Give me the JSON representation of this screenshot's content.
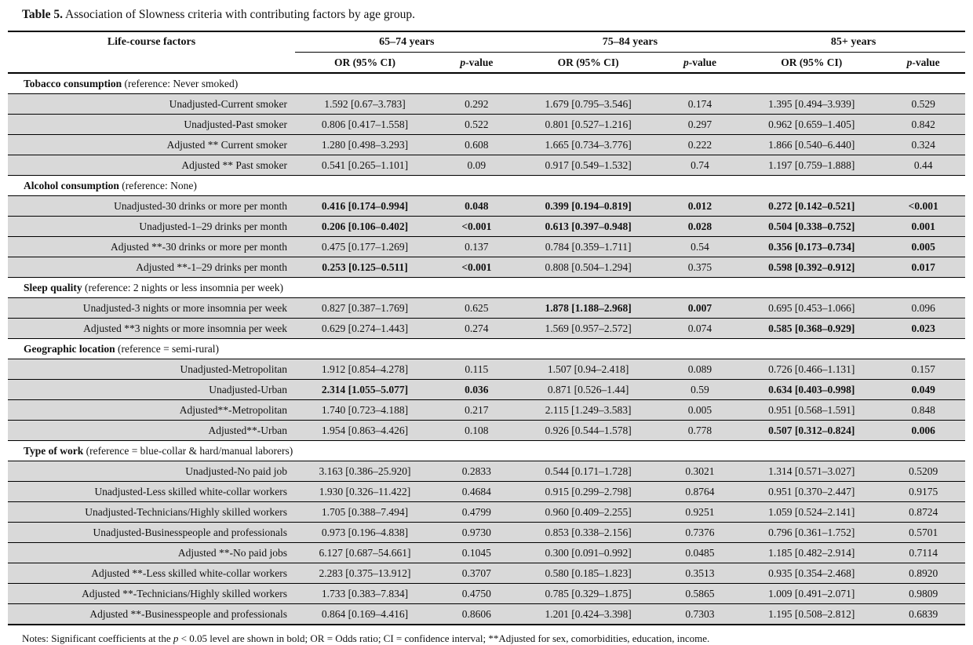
{
  "title": {
    "bold_part": "Table 5.",
    "rest_part": " Association of Slowness criteria with contributing factors by age group."
  },
  "colors": {
    "row_bg": "#d9d9d9",
    "rule": "#000000",
    "text": "#111111"
  },
  "header": {
    "factor_col": "Life-course factors",
    "groups": [
      {
        "label": "65–74 years"
      },
      {
        "label": "75–84 years"
      },
      {
        "label": "85+ years"
      }
    ],
    "or_label": "OR (95% CI)",
    "p_italic": "p",
    "p_rest": "-value"
  },
  "sections": [
    {
      "title": "Tobacco consumption",
      "reference": "(reference: Never smoked)",
      "rows": [
        {
          "label": "Unadjusted-Current smoker",
          "values": [
            "1.592 [0.67–3.783]",
            "0.292",
            "1.679 [0.795–3.546]",
            "0.174",
            "1.395 [0.494–3.939]",
            "0.529"
          ],
          "bold": [
            false,
            false,
            false,
            false,
            false,
            false
          ]
        },
        {
          "label": "Unadjusted-Past smoker",
          "values": [
            "0.806 [0.417–1.558]",
            "0.522",
            "0.801 [0.527–1.216]",
            "0.297",
            "0.962 [0.659–1.405]",
            "0.842"
          ],
          "bold": [
            false,
            false,
            false,
            false,
            false,
            false
          ]
        },
        {
          "label": "Adjusted ** Current smoker",
          "values": [
            "1.280 [0.498–3.293]",
            "0.608",
            "1.665 [0.734–3.776]",
            "0.222",
            "1.866 [0.540–6.440]",
            "0.324"
          ],
          "bold": [
            false,
            false,
            false,
            false,
            false,
            false
          ]
        },
        {
          "label": "Adjusted ** Past smoker",
          "values": [
            "0.541 [0.265–1.101]",
            "0.09",
            "0.917 [0.549–1.532]",
            "0.74",
            "1.197 [0.759–1.888]",
            "0.44"
          ],
          "bold": [
            false,
            false,
            false,
            false,
            false,
            false
          ]
        }
      ]
    },
    {
      "title": "Alcohol consumption",
      "reference": "(reference: None)",
      "rows": [
        {
          "label": "Unadjusted-30 drinks or more per month",
          "values": [
            "0.416 [0.174–0.994]",
            "0.048",
            "0.399 [0.194–0.819]",
            "0.012",
            "0.272 [0.142–0.521]",
            "<0.001"
          ],
          "bold": [
            true,
            true,
            true,
            true,
            true,
            true
          ]
        },
        {
          "label": "Unadjusted-1–29 drinks per month",
          "values": [
            "0.206 [0.106–0.402]",
            "<0.001",
            "0.613 [0.397–0.948]",
            "0.028",
            "0.504 [0.338–0.752]",
            "0.001"
          ],
          "bold": [
            true,
            true,
            true,
            true,
            true,
            true
          ]
        },
        {
          "label": "Adjusted **-30 drinks or more per month",
          "values": [
            "0.475 [0.177–1.269]",
            "0.137",
            "0.784 [0.359–1.711]",
            "0.54",
            "0.356 [0.173–0.734]",
            "0.005"
          ],
          "bold": [
            false,
            false,
            false,
            false,
            true,
            true
          ]
        },
        {
          "label": "Adjusted **-1–29 drinks per month",
          "values": [
            "0.253 [0.125–0.511]",
            "<0.001",
            "0.808 [0.504–1.294]",
            "0.375",
            "0.598 [0.392–0.912]",
            "0.017"
          ],
          "bold": [
            true,
            true,
            false,
            false,
            true,
            true
          ]
        }
      ]
    },
    {
      "title": "Sleep quality",
      "reference": "(reference: 2 nights or less insomnia per week)",
      "rows": [
        {
          "label": "Unadjusted-3 nights or more insomnia per week",
          "values": [
            "0.827 [0.387–1.769]",
            "0.625",
            "1.878 [1.188–2.968]",
            "0.007",
            "0.695 [0.453–1.066]",
            "0.096"
          ],
          "bold": [
            false,
            false,
            true,
            true,
            false,
            false
          ]
        },
        {
          "label": "Adjusted **3 nights or more insomnia per week",
          "values": [
            "0.629 [0.274–1.443]",
            "0.274",
            "1.569 [0.957–2.572]",
            "0.074",
            "0.585 [0.368–0.929]",
            "0.023"
          ],
          "bold": [
            false,
            false,
            false,
            false,
            true,
            true
          ]
        }
      ]
    },
    {
      "title": "Geographic location",
      "reference": "(reference = semi-rural)",
      "rows": [
        {
          "label": "Unadjusted-Metropolitan",
          "values": [
            "1.912 [0.854–4.278]",
            "0.115",
            "1.507 [0.94–2.418]",
            "0.089",
            "0.726 [0.466–1.131]",
            "0.157"
          ],
          "bold": [
            false,
            false,
            false,
            false,
            false,
            false
          ]
        },
        {
          "label": "Unadjusted-Urban",
          "values": [
            "2.314 [1.055–5.077]",
            "0.036",
            "0.871 [0.526–1.44]",
            "0.59",
            "0.634 [0.403–0.998]",
            "0.049"
          ],
          "bold": [
            true,
            true,
            false,
            false,
            true,
            true
          ]
        },
        {
          "label": "Adjusted**-Metropolitan",
          "values": [
            "1.740 [0.723–4.188]",
            "0.217",
            "2.115 [1.249–3.583]",
            "0.005",
            "0.951 [0.568–1.591]",
            "0.848"
          ],
          "bold": [
            false,
            false,
            false,
            false,
            false,
            false
          ]
        },
        {
          "label": "Adjusted**-Urban",
          "values": [
            "1.954 [0.863–4.426]",
            "0.108",
            "0.926 [0.544–1.578]",
            "0.778",
            "0.507 [0.312–0.824]",
            "0.006"
          ],
          "bold": [
            false,
            false,
            false,
            false,
            true,
            true
          ]
        }
      ]
    },
    {
      "title": "Type of work",
      "reference": "(reference = blue-collar & hard/manual laborers)",
      "rows": [
        {
          "label": "Unadjusted-No paid job",
          "values": [
            "3.163 [0.386–25.920]",
            "0.2833",
            "0.544 [0.171–1.728]",
            "0.3021",
            "1.314 [0.571–3.027]",
            "0.5209"
          ],
          "bold": [
            false,
            false,
            false,
            false,
            false,
            false
          ]
        },
        {
          "label": "Unadjusted-Less skilled white-collar workers",
          "values": [
            "1.930 [0.326–11.422]",
            "0.4684",
            "0.915 [0.299–2.798]",
            "0.8764",
            "0.951 [0.370–2.447]",
            "0.9175"
          ],
          "bold": [
            false,
            false,
            false,
            false,
            false,
            false
          ]
        },
        {
          "label": "Unadjusted-Technicians/Highly skilled workers",
          "values": [
            "1.705 [0.388–7.494]",
            "0.4799",
            "0.960 [0.409–2.255]",
            "0.9251",
            "1.059 [0.524–2.141]",
            "0.8724"
          ],
          "bold": [
            false,
            false,
            false,
            false,
            false,
            false
          ]
        },
        {
          "label": "Unadjusted-Businesspeople and professionals",
          "values": [
            "0.973 [0.196–4.838]",
            "0.9730",
            "0.853 [0.338–2.156]",
            "0.7376",
            "0.796 [0.361–1.752]",
            "0.5701"
          ],
          "bold": [
            false,
            false,
            false,
            false,
            false,
            false
          ]
        },
        {
          "label": "Adjusted **-No paid jobs",
          "values": [
            "6.127 [0.687–54.661]",
            "0.1045",
            "0.300 [0.091–0.992]",
            "0.0485",
            "1.185 [0.482–2.914]",
            "0.7114"
          ],
          "bold": [
            false,
            false,
            false,
            false,
            false,
            false
          ]
        },
        {
          "label": "Adjusted **-Less skilled white-collar workers",
          "values": [
            "2.283 [0.375–13.912]",
            "0.3707",
            "0.580 [0.185–1.823]",
            "0.3513",
            "0.935 [0.354–2.468]",
            "0.8920"
          ],
          "bold": [
            false,
            false,
            false,
            false,
            false,
            false
          ]
        },
        {
          "label": "Adjusted **-Technicians/Highly skilled workers",
          "values": [
            "1.733 [0.383–7.834]",
            "0.4750",
            "0.785 [0.329–1.875]",
            "0.5865",
            "1.009 [0.491–2.071]",
            "0.9809"
          ],
          "bold": [
            false,
            false,
            false,
            false,
            false,
            false
          ]
        },
        {
          "label": "Adjusted **-Businesspeople and professionals",
          "values": [
            "0.864 [0.169–4.416]",
            "0.8606",
            "1.201 [0.424–3.398]",
            "0.7303",
            "1.195 [0.508–2.812]",
            "0.6839"
          ],
          "bold": [
            false,
            false,
            false,
            false,
            false,
            false
          ]
        }
      ]
    }
  ],
  "notes": {
    "prefix": "Notes: Significant coefficients at the ",
    "p": "p",
    "suffix": " < 0.05 level are shown in bold; OR = Odds ratio; CI = confidence interval; **Adjusted for sex, comorbidities, education, income."
  }
}
